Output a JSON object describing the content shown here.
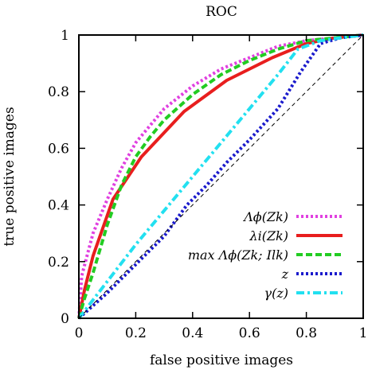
{
  "chart_data": {
    "type": "line",
    "title": "ROC",
    "xlabel": "false positive images",
    "ylabel": "true positive images",
    "xlim": [
      0,
      1
    ],
    "ylim": [
      0,
      1
    ],
    "xticks": [
      {
        "v": 0,
        "label": "0"
      },
      {
        "v": 0.2,
        "label": "0.2"
      },
      {
        "v": 0.4,
        "label": "0.4"
      },
      {
        "v": 0.6,
        "label": "0.6"
      },
      {
        "v": 0.8,
        "label": "0.8"
      },
      {
        "v": 1,
        "label": "1"
      }
    ],
    "yticks": [
      {
        "v": 0,
        "label": "0"
      },
      {
        "v": 0.2,
        "label": "0.2"
      },
      {
        "v": 0.4,
        "label": "0.4"
      },
      {
        "v": 0.6,
        "label": "0.6"
      },
      {
        "v": 0.8,
        "label": "0.8"
      },
      {
        "v": 1,
        "label": "1"
      }
    ],
    "grid": false,
    "legend_position": "bottom-right",
    "diagonal_reference": true,
    "series": [
      {
        "name": "Λϕ(Zk)",
        "color": "#e040e0",
        "dash": "dotted",
        "x": [
          0,
          0.01,
          0.05,
          0.1,
          0.15,
          0.2,
          0.25,
          0.3,
          0.4,
          0.5,
          0.6,
          0.7,
          0.8,
          0.9,
          1
        ],
        "y": [
          0,
          0.15,
          0.3,
          0.42,
          0.53,
          0.62,
          0.68,
          0.74,
          0.82,
          0.88,
          0.92,
          0.96,
          0.98,
          0.99,
          1
        ]
      },
      {
        "name": "λi(Zk)",
        "color": "#e81e1e",
        "dash": "solid",
        "x": [
          0,
          0.02,
          0.05,
          0.12,
          0.22,
          0.37,
          0.52,
          0.68,
          0.8,
          0.9,
          1
        ],
        "y": [
          0,
          0.1,
          0.22,
          0.42,
          0.57,
          0.73,
          0.84,
          0.92,
          0.97,
          0.99,
          1
        ]
      },
      {
        "name": "max Λϕ(Zk; Ilk)",
        "color": "#22cc22",
        "dash": "dashed",
        "x": [
          0,
          0.02,
          0.05,
          0.1,
          0.15,
          0.2,
          0.25,
          0.3,
          0.4,
          0.5,
          0.6,
          0.7,
          0.8,
          0.9,
          1
        ],
        "y": [
          0,
          0.07,
          0.16,
          0.33,
          0.47,
          0.57,
          0.64,
          0.7,
          0.79,
          0.86,
          0.91,
          0.95,
          0.98,
          0.99,
          1
        ]
      },
      {
        "name": "z",
        "color": "#1a1acc",
        "dash": "dotted",
        "x": [
          0,
          0.1,
          0.2,
          0.3,
          0.38,
          0.45,
          0.52,
          0.6,
          0.7,
          0.78,
          0.85,
          0.92,
          1
        ],
        "y": [
          0,
          0.09,
          0.19,
          0.29,
          0.4,
          0.47,
          0.55,
          0.63,
          0.74,
          0.87,
          0.97,
          0.99,
          1
        ]
      },
      {
        "name": "γ(z)",
        "color": "#22e0f0",
        "dash": "dashdot",
        "x": [
          0,
          0.1,
          0.2,
          0.3,
          0.4,
          0.5,
          0.6,
          0.7,
          0.77,
          0.85,
          0.92,
          1
        ],
        "y": [
          0,
          0.13,
          0.26,
          0.38,
          0.5,
          0.62,
          0.74,
          0.86,
          0.95,
          0.98,
          0.99,
          1
        ]
      }
    ]
  }
}
